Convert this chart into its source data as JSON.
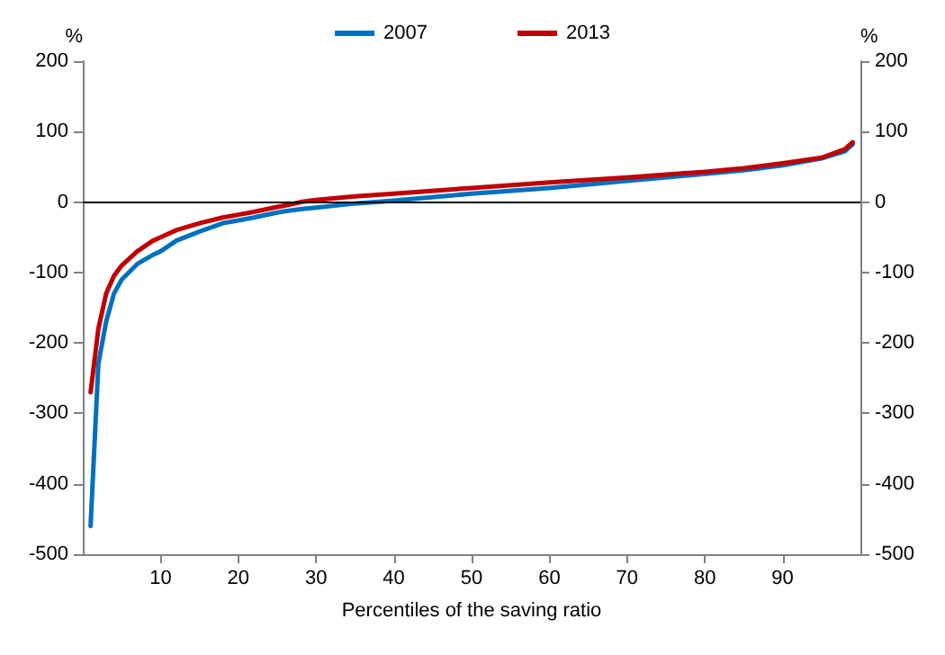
{
  "chart_data": {
    "type": "line",
    "xlabel": "Percentiles of the saving ratio",
    "ylabel": "%",
    "y2label": "%",
    "x": [
      1,
      2,
      3,
      4,
      5,
      7,
      9,
      10,
      12,
      15,
      18,
      20,
      22,
      25,
      26,
      28,
      30,
      35,
      40,
      50,
      60,
      70,
      80,
      85,
      90,
      95,
      98,
      99
    ],
    "series": [
      {
        "name": "2007",
        "color": "#0070c0",
        "values": [
          -460,
          -230,
          -170,
          -130,
          -110,
          -88,
          -75,
          -70,
          -55,
          -42,
          -30,
          -26,
          -22,
          -15,
          -13,
          -10,
          -8,
          -2,
          2,
          12,
          20,
          30,
          40,
          45,
          52,
          62,
          72,
          82
        ]
      },
      {
        "name": "2013",
        "color": "#c00000",
        "values": [
          -270,
          -180,
          -130,
          -105,
          -90,
          -70,
          -55,
          -50,
          -40,
          -30,
          -22,
          -18,
          -14,
          -7,
          -5,
          0,
          3,
          8,
          12,
          20,
          28,
          35,
          43,
          48,
          55,
          63,
          75,
          85
        ]
      }
    ],
    "xlim": [
      0,
      100
    ],
    "xticks": [
      10,
      20,
      30,
      40,
      50,
      60,
      70,
      80,
      90
    ],
    "ylim": [
      -500,
      200
    ],
    "yticks": [
      -500,
      -400,
      -300,
      -200,
      -100,
      0,
      100,
      200
    ],
    "y2lim": [
      -500,
      200
    ],
    "y2ticks": [
      -500,
      -400,
      -300,
      -200,
      -100,
      0,
      100,
      200
    ],
    "ref_lines": [
      {
        "axis": "y",
        "value": 0,
        "color": "#000000"
      }
    ],
    "legend": "top",
    "grid": false,
    "marker": "none",
    "line_style": "solid"
  }
}
